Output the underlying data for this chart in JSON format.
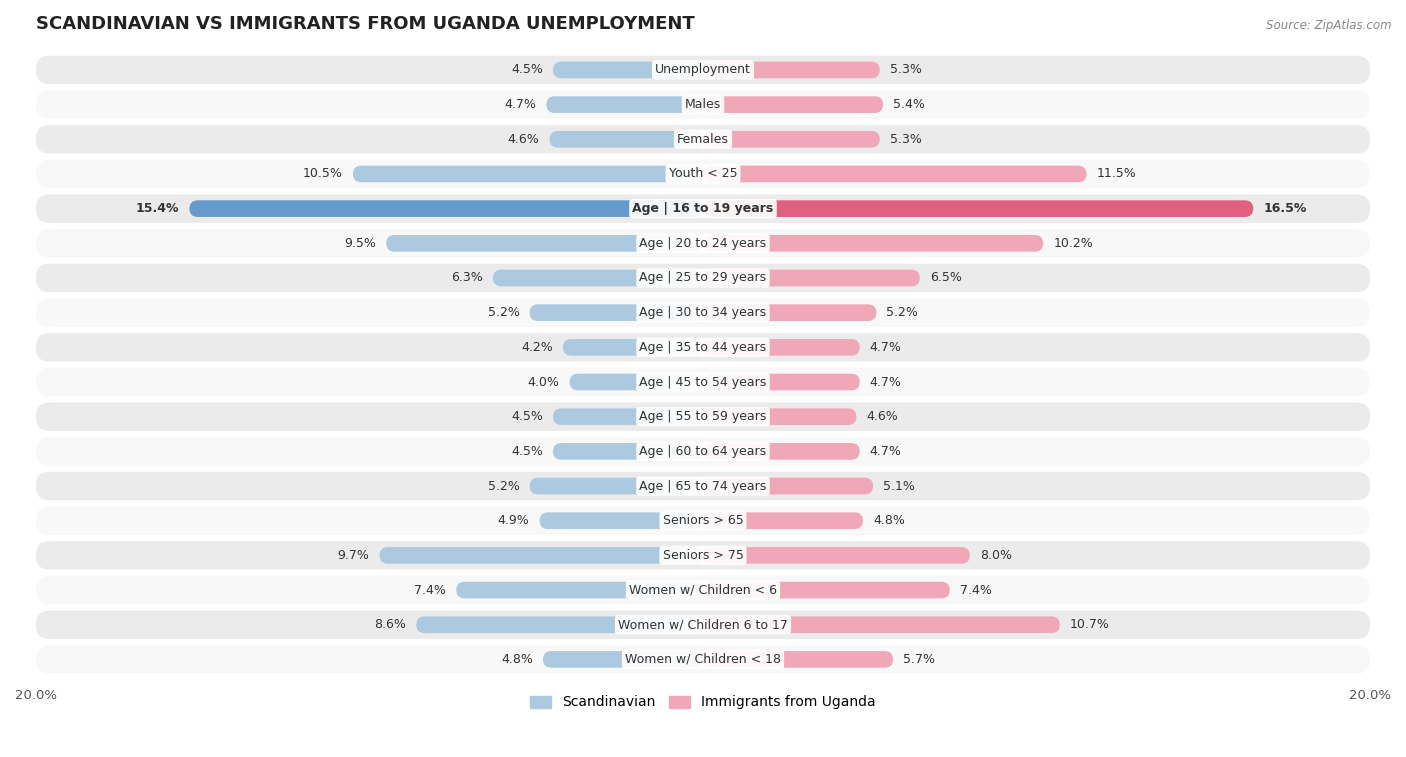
{
  "title": "SCANDINAVIAN VS IMMIGRANTS FROM UGANDA UNEMPLOYMENT",
  "source": "Source: ZipAtlas.com",
  "categories": [
    "Unemployment",
    "Males",
    "Females",
    "Youth < 25",
    "Age | 16 to 19 years",
    "Age | 20 to 24 years",
    "Age | 25 to 29 years",
    "Age | 30 to 34 years",
    "Age | 35 to 44 years",
    "Age | 45 to 54 years",
    "Age | 55 to 59 years",
    "Age | 60 to 64 years",
    "Age | 65 to 74 years",
    "Seniors > 65",
    "Seniors > 75",
    "Women w/ Children < 6",
    "Women w/ Children 6 to 17",
    "Women w/ Children < 18"
  ],
  "scandinavian": [
    4.5,
    4.7,
    4.6,
    10.5,
    15.4,
    9.5,
    6.3,
    5.2,
    4.2,
    4.0,
    4.5,
    4.5,
    5.2,
    4.9,
    9.7,
    7.4,
    8.6,
    4.8
  ],
  "uganda": [
    5.3,
    5.4,
    5.3,
    11.5,
    16.5,
    10.2,
    6.5,
    5.2,
    4.7,
    4.7,
    4.6,
    4.7,
    5.1,
    4.8,
    8.0,
    7.4,
    10.7,
    5.7
  ],
  "xlim": 20.0,
  "color_scandinavian": "#adc9e0",
  "color_uganda": "#f0a8b8",
  "color_scandinavian_highlight": "#6699cc",
  "color_uganda_highlight": "#e06080",
  "background_row_light": "#ebebeb",
  "background_row_dark": "#d8d8d8",
  "highlight_row": 4,
  "title_fontsize": 13,
  "label_fontsize": 9,
  "value_fontsize": 9,
  "legend_fontsize": 10
}
